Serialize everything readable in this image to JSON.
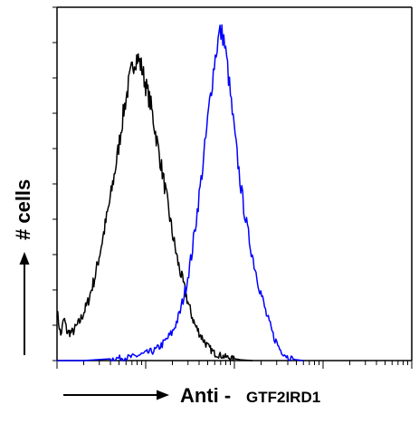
{
  "chart_data": {
    "type": "line",
    "title": "",
    "ylabel": "# cells",
    "xlabel": "Anti -",
    "xlabel_target": "GTF2IRD1",
    "x_scale": "log",
    "xlim": [
      1,
      10000
    ],
    "ylim": [
      0,
      100
    ],
    "x_tick_labels_shown": false,
    "y_tick_labels_shown": false,
    "grid": false,
    "legend": "none",
    "series": [
      {
        "color": "#000000",
        "x": [
          1,
          1.1,
          1.2,
          1.3,
          1.5,
          1.8,
          2.2,
          2.7,
          3.3,
          4,
          4.8,
          5.6,
          6.4,
          7.2,
          8,
          9,
          10,
          11.5,
          13,
          15,
          17.5,
          20,
          23,
          27,
          31,
          36,
          42,
          50,
          60,
          75,
          95,
          120,
          160
        ],
        "y": [
          14,
          7,
          12,
          8,
          8,
          11,
          16,
          24,
          35,
          46,
          58,
          70,
          78,
          84,
          86,
          83,
          78,
          72,
          64,
          55,
          45,
          36,
          28,
          21,
          15,
          10,
          7,
          4,
          2,
          1.2,
          0.6,
          0.2,
          0
        ]
      },
      {
        "color": "#0000ff",
        "x": [
          1,
          2,
          4,
          7,
          10,
          13,
          16,
          20,
          24,
          28,
          33,
          38,
          45,
          52,
          60,
          68,
          75,
          83,
          92,
          105,
          120,
          140,
          165,
          195,
          230,
          275,
          330,
          400,
          480,
          600
        ],
        "y": [
          0,
          0,
          0.5,
          1,
          2,
          3,
          5,
          8,
          13,
          20,
          30,
          42,
          57,
          72,
          85,
          93,
          92,
          84,
          73,
          60,
          48,
          37,
          28,
          20,
          13,
          7,
          3,
          1,
          0.3,
          0
        ]
      }
    ]
  }
}
